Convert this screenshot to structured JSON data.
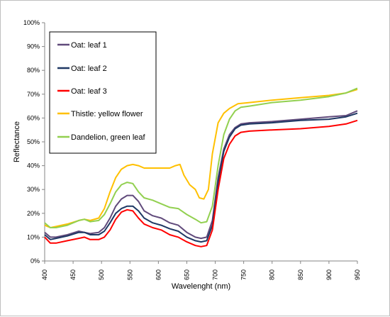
{
  "chart_data": {
    "type": "line",
    "title": "",
    "xlabel": "Wavelenght (nm)",
    "ylabel": "Reflectance",
    "xlim": [
      400,
      950
    ],
    "ylim": [
      0,
      100
    ],
    "x_ticks": [
      400,
      450,
      500,
      550,
      600,
      650,
      700,
      750,
      800,
      850,
      900,
      950
    ],
    "y_ticks": [
      0,
      10,
      20,
      30,
      40,
      50,
      60,
      70,
      80,
      90,
      100
    ],
    "y_tick_labels": [
      "0%",
      "10%",
      "20%",
      "30%",
      "40%",
      "50%",
      "60%",
      "70%",
      "80%",
      "90%",
      "100%"
    ],
    "grid": false,
    "legend_position": "top-left",
    "series": [
      {
        "name": "Oat: leaf 1",
        "color": "#604a7b",
        "points": [
          [
            400,
            12
          ],
          [
            410,
            10
          ],
          [
            420,
            10
          ],
          [
            440,
            11
          ],
          [
            460,
            12.5
          ],
          [
            470,
            12
          ],
          [
            480,
            11.5
          ],
          [
            495,
            12
          ],
          [
            505,
            14
          ],
          [
            515,
            18
          ],
          [
            525,
            23
          ],
          [
            535,
            26
          ],
          [
            545,
            27.5
          ],
          [
            555,
            27.5
          ],
          [
            565,
            25
          ],
          [
            575,
            21
          ],
          [
            590,
            19
          ],
          [
            605,
            18
          ],
          [
            620,
            16
          ],
          [
            635,
            15
          ],
          [
            650,
            12
          ],
          [
            665,
            10
          ],
          [
            675,
            9.5
          ],
          [
            685,
            10
          ],
          [
            695,
            17
          ],
          [
            705,
            35
          ],
          [
            715,
            47
          ],
          [
            725,
            53
          ],
          [
            735,
            56
          ],
          [
            745,
            57.5
          ],
          [
            760,
            58
          ],
          [
            800,
            58.5
          ],
          [
            850,
            59.5
          ],
          [
            900,
            60.5
          ],
          [
            930,
            61
          ],
          [
            950,
            63
          ]
        ]
      },
      {
        "name": "Oat: leaf 2",
        "color": "#1f3864",
        "points": [
          [
            400,
            11
          ],
          [
            410,
            9
          ],
          [
            420,
            9.5
          ],
          [
            440,
            10.5
          ],
          [
            460,
            12
          ],
          [
            470,
            12
          ],
          [
            480,
            11
          ],
          [
            495,
            11
          ],
          [
            505,
            12.5
          ],
          [
            515,
            16
          ],
          [
            525,
            20
          ],
          [
            535,
            22
          ],
          [
            545,
            23
          ],
          [
            555,
            23
          ],
          [
            565,
            21
          ],
          [
            575,
            18
          ],
          [
            590,
            16
          ],
          [
            605,
            15
          ],
          [
            620,
            13.5
          ],
          [
            635,
            12.5
          ],
          [
            650,
            10
          ],
          [
            665,
            8.5
          ],
          [
            675,
            8
          ],
          [
            685,
            8.5
          ],
          [
            695,
            15
          ],
          [
            705,
            33
          ],
          [
            715,
            46
          ],
          [
            725,
            52
          ],
          [
            735,
            55.5
          ],
          [
            745,
            57
          ],
          [
            760,
            57.5
          ],
          [
            800,
            58
          ],
          [
            850,
            59
          ],
          [
            900,
            59.5
          ],
          [
            930,
            60.5
          ],
          [
            950,
            62
          ]
        ]
      },
      {
        "name": "Oat: leaf 3",
        "color": "#ff0000",
        "points": [
          [
            400,
            10
          ],
          [
            410,
            7.5
          ],
          [
            420,
            7.5
          ],
          [
            440,
            8.5
          ],
          [
            460,
            9.5
          ],
          [
            470,
            10
          ],
          [
            480,
            9
          ],
          [
            495,
            9
          ],
          [
            505,
            10
          ],
          [
            515,
            13
          ],
          [
            525,
            17.5
          ],
          [
            535,
            20.5
          ],
          [
            545,
            21.5
          ],
          [
            555,
            21
          ],
          [
            565,
            18
          ],
          [
            575,
            15.5
          ],
          [
            590,
            14
          ],
          [
            605,
            13
          ],
          [
            620,
            11
          ],
          [
            635,
            10
          ],
          [
            650,
            8
          ],
          [
            665,
            6.5
          ],
          [
            675,
            6
          ],
          [
            685,
            6.5
          ],
          [
            695,
            13
          ],
          [
            705,
            30
          ],
          [
            715,
            43
          ],
          [
            725,
            49
          ],
          [
            735,
            52.5
          ],
          [
            745,
            54
          ],
          [
            760,
            54.5
          ],
          [
            800,
            55
          ],
          [
            850,
            55.5
          ],
          [
            900,
            56.5
          ],
          [
            930,
            57.5
          ],
          [
            950,
            59
          ]
        ]
      },
      {
        "name": "Thistle: yellow flower",
        "color": "#ffc000",
        "points": [
          [
            400,
            15
          ],
          [
            410,
            14
          ],
          [
            420,
            14.5
          ],
          [
            440,
            15.5
          ],
          [
            460,
            17
          ],
          [
            470,
            17.5
          ],
          [
            480,
            17
          ],
          [
            495,
            18
          ],
          [
            505,
            22
          ],
          [
            515,
            29
          ],
          [
            525,
            35
          ],
          [
            535,
            38.5
          ],
          [
            545,
            40
          ],
          [
            555,
            40.5
          ],
          [
            565,
            40
          ],
          [
            575,
            39
          ],
          [
            590,
            39
          ],
          [
            605,
            39
          ],
          [
            620,
            39
          ],
          [
            630,
            40
          ],
          [
            638,
            40.5
          ],
          [
            645,
            36
          ],
          [
            655,
            32
          ],
          [
            665,
            30
          ],
          [
            672,
            26.5
          ],
          [
            680,
            26
          ],
          [
            688,
            30
          ],
          [
            695,
            45
          ],
          [
            705,
            58
          ],
          [
            715,
            62
          ],
          [
            725,
            64
          ],
          [
            740,
            66
          ],
          [
            760,
            66.5
          ],
          [
            800,
            67.5
          ],
          [
            850,
            68.5
          ],
          [
            900,
            69.5
          ],
          [
            930,
            70.5
          ],
          [
            950,
            72
          ]
        ]
      },
      {
        "name": "Dandelion, green leaf",
        "color": "#92d050",
        "points": [
          [
            400,
            16
          ],
          [
            410,
            14
          ],
          [
            420,
            14
          ],
          [
            440,
            15
          ],
          [
            460,
            17
          ],
          [
            470,
            17.5
          ],
          [
            480,
            16.5
          ],
          [
            495,
            17
          ],
          [
            505,
            19.5
          ],
          [
            515,
            24
          ],
          [
            525,
            29
          ],
          [
            535,
            32
          ],
          [
            545,
            33
          ],
          [
            555,
            32.5
          ],
          [
            565,
            29
          ],
          [
            575,
            26.5
          ],
          [
            590,
            25.5
          ],
          [
            605,
            24
          ],
          [
            620,
            22.5
          ],
          [
            635,
            22
          ],
          [
            650,
            19.5
          ],
          [
            665,
            17.5
          ],
          [
            675,
            16
          ],
          [
            685,
            16.5
          ],
          [
            695,
            23
          ],
          [
            705,
            40
          ],
          [
            715,
            53
          ],
          [
            725,
            59.5
          ],
          [
            735,
            63
          ],
          [
            745,
            64.5
          ],
          [
            760,
            65
          ],
          [
            800,
            66.5
          ],
          [
            850,
            67.5
          ],
          [
            900,
            69
          ],
          [
            930,
            70.5
          ],
          [
            950,
            72.5
          ]
        ]
      }
    ]
  }
}
